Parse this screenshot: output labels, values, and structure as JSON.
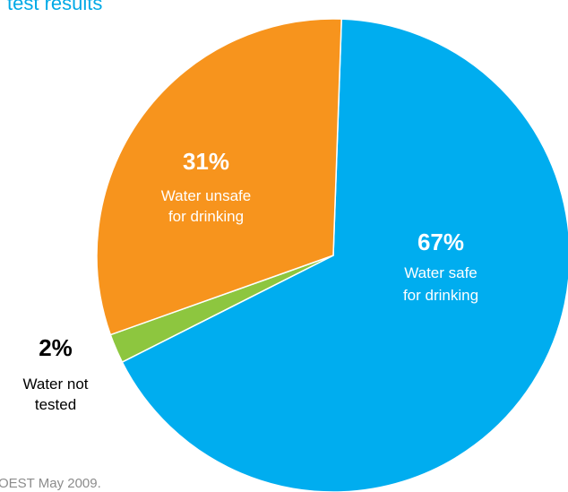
{
  "chart_data": {
    "type": "pie",
    "title": "test results",
    "source": "OEST May 2009.",
    "slices": [
      {
        "key": "safe",
        "percent_label": "67%",
        "value": 67,
        "label_lines": [
          "Water safe",
          "for drinking"
        ],
        "color": "#00adef",
        "text_color": "#ffffff"
      },
      {
        "key": "not-tested",
        "percent_label": "2%",
        "value": 2,
        "label_lines": [
          "Water not",
          "tested"
        ],
        "color": "#8dc63f",
        "text_color": "#000000"
      },
      {
        "key": "unsafe",
        "percent_label": "31%",
        "value": 31,
        "label_lines": [
          "Water unsafe",
          "for drinking"
        ],
        "color": "#f7941d",
        "text_color": "#ffffff"
      }
    ]
  }
}
